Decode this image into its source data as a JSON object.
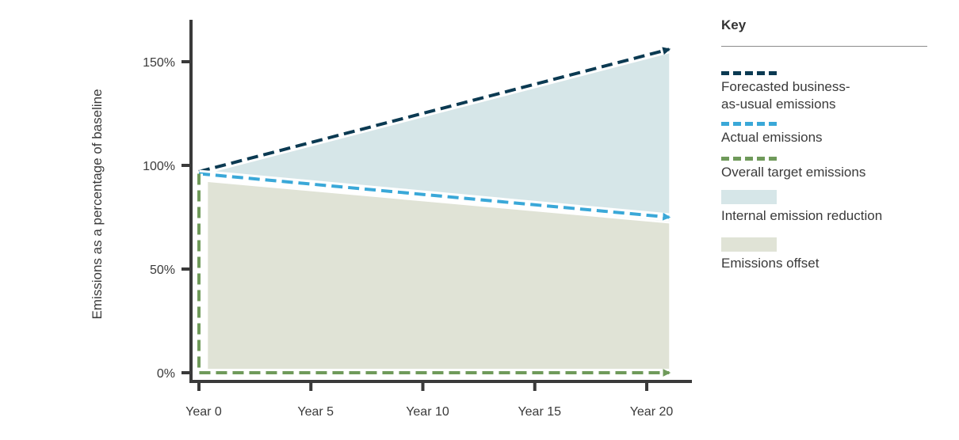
{
  "key": {
    "title": "Key",
    "items": [
      {
        "label": "Forecasted business-\nas-usual emissions",
        "kind": "line",
        "color": "#0b3a52"
      },
      {
        "label": "Actual emissions",
        "kind": "line",
        "color": "#3aa8d8"
      },
      {
        "label": "Overall target emissions",
        "kind": "line",
        "color": "#6f9a5a"
      },
      {
        "label": "Internal emission reduction",
        "kind": "fill",
        "color": "#d6e6e8"
      },
      {
        "label": "Emissions offset",
        "kind": "fill",
        "color": "#e0e3d6"
      }
    ]
  },
  "chart_data": {
    "type": "area",
    "ylabel": "Emissions as a percentage of baseline",
    "xlabel": "",
    "x_ticks": [
      "Year 0",
      "Year 5",
      "Year 10",
      "Year 15",
      "Year 20"
    ],
    "x_tick_values": [
      0,
      5,
      10,
      15,
      20
    ],
    "y_ticks": [
      "0%",
      "50%",
      "100%",
      "150%"
    ],
    "y_tick_values": [
      0,
      50,
      100,
      150
    ],
    "xlim": [
      0,
      21
    ],
    "ylim": [
      -3,
      170
    ],
    "series": [
      {
        "name": "Forecasted business-as-usual emissions",
        "style": "dashed-arrow",
        "color": "#0b3a52",
        "x": [
          0,
          21
        ],
        "y": [
          97,
          156
        ]
      },
      {
        "name": "Actual emissions",
        "style": "dashed-arrow",
        "color": "#3aa8d8",
        "x": [
          0,
          21
        ],
        "y": [
          96,
          75
        ]
      },
      {
        "name": "Overall target emissions",
        "style": "dashed-arrow",
        "color": "#6f9a5a",
        "x": [
          0,
          0,
          21
        ],
        "y": [
          96,
          0,
          0
        ]
      }
    ],
    "areas": [
      {
        "name": "Internal emission reduction",
        "color": "#d6e6e8",
        "x": [
          0,
          21,
          21,
          0
        ],
        "y": [
          97,
          155,
          73,
          95
        ]
      },
      {
        "name": "Emissions offset",
        "color": "#e0e3d6",
        "x": [
          0.4,
          21,
          21,
          0.4
        ],
        "y": [
          92,
          72,
          0,
          0
        ]
      }
    ],
    "grid": false,
    "legend": "right"
  }
}
